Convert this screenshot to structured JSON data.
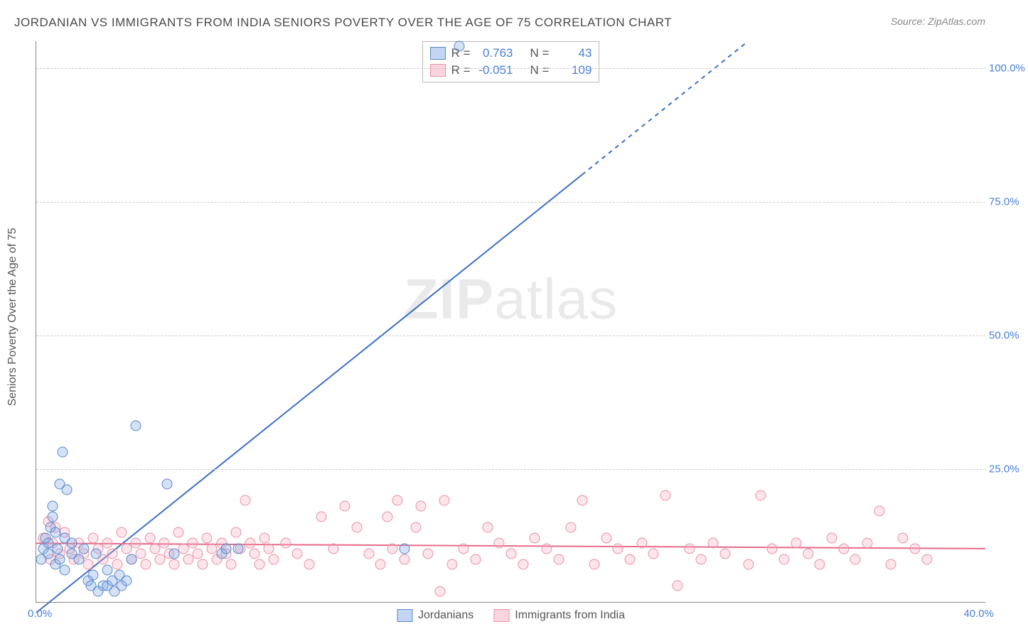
{
  "title": "JORDANIAN VS IMMIGRANTS FROM INDIA SENIORS POVERTY OVER THE AGE OF 75 CORRELATION CHART",
  "source": "Source: ZipAtlas.com",
  "ylabel": "Seniors Poverty Over the Age of 75",
  "watermark_bold": "ZIP",
  "watermark_rest": "atlas",
  "chart": {
    "type": "scatter",
    "xlim": [
      0,
      40
    ],
    "ylim": [
      0,
      105
    ],
    "x_ticks": [
      {
        "v": 0,
        "label": "0.0%"
      },
      {
        "v": 40,
        "label": "40.0%"
      }
    ],
    "y_ticks": [
      {
        "v": 25,
        "label": "25.0%"
      },
      {
        "v": 50,
        "label": "50.0%"
      },
      {
        "v": 75,
        "label": "75.0%"
      },
      {
        "v": 100,
        "label": "100.0%"
      }
    ],
    "grid_color": "#cccccc",
    "axis_color": "#888888",
    "background_color": "#ffffff",
    "marker_size": 15,
    "series": [
      {
        "name": "Jordanians",
        "color_fill": "rgba(136,172,230,0.35)",
        "color_stroke": "#5a88c8",
        "R": 0.763,
        "N": 43,
        "trend": {
          "x1": 0,
          "y1": -2,
          "x2": 23,
          "y2": 80,
          "dash_from_x": 23,
          "dash_to_x": 30,
          "dash_to_y": 105,
          "color": "#3d6fc9",
          "width": 2
        },
        "points": [
          [
            0.2,
            8
          ],
          [
            0.3,
            10
          ],
          [
            0.4,
            12
          ],
          [
            0.5,
            9
          ],
          [
            0.5,
            11
          ],
          [
            0.6,
            14
          ],
          [
            0.7,
            16
          ],
          [
            0.7,
            18
          ],
          [
            0.8,
            7
          ],
          [
            0.8,
            13
          ],
          [
            0.9,
            10
          ],
          [
            1.0,
            8
          ],
          [
            1.0,
            22
          ],
          [
            1.1,
            28
          ],
          [
            1.2,
            12
          ],
          [
            1.2,
            6
          ],
          [
            1.3,
            21
          ],
          [
            1.5,
            9
          ],
          [
            1.5,
            11
          ],
          [
            1.8,
            8
          ],
          [
            2.0,
            10
          ],
          [
            2.2,
            4
          ],
          [
            2.3,
            3
          ],
          [
            2.4,
            5
          ],
          [
            2.5,
            9
          ],
          [
            2.6,
            2
          ],
          [
            2.8,
            3
          ],
          [
            3.0,
            6
          ],
          [
            3.0,
            3
          ],
          [
            3.2,
            4
          ],
          [
            3.3,
            2
          ],
          [
            3.5,
            5
          ],
          [
            3.6,
            3
          ],
          [
            3.8,
            4
          ],
          [
            4.0,
            8
          ],
          [
            4.2,
            33
          ],
          [
            5.5,
            22
          ],
          [
            5.8,
            9
          ],
          [
            7.8,
            9
          ],
          [
            8.0,
            10
          ],
          [
            15.5,
            10
          ],
          [
            17.8,
            104
          ],
          [
            8.5,
            10
          ]
        ]
      },
      {
        "name": "Immigrants from India",
        "color_fill": "rgba(245,170,190,0.30)",
        "color_stroke": "#e890a5",
        "R": -0.051,
        "N": 109,
        "trend": {
          "x1": 0,
          "y1": 11,
          "x2": 40,
          "y2": 10,
          "color": "#e86a8a",
          "width": 2
        },
        "points": [
          [
            0.3,
            12
          ],
          [
            0.5,
            15
          ],
          [
            0.6,
            8
          ],
          [
            0.7,
            11
          ],
          [
            0.8,
            14
          ],
          [
            1.0,
            9
          ],
          [
            1.2,
            13
          ],
          [
            1.4,
            10
          ],
          [
            1.6,
            8
          ],
          [
            1.8,
            11
          ],
          [
            2.0,
            9
          ],
          [
            2.2,
            7
          ],
          [
            2.4,
            12
          ],
          [
            2.6,
            10
          ],
          [
            2.8,
            8
          ],
          [
            3.0,
            11
          ],
          [
            3.2,
            9
          ],
          [
            3.4,
            7
          ],
          [
            3.6,
            13
          ],
          [
            3.8,
            10
          ],
          [
            4.0,
            8
          ],
          [
            4.2,
            11
          ],
          [
            4.4,
            9
          ],
          [
            4.6,
            7
          ],
          [
            4.8,
            12
          ],
          [
            5.0,
            10
          ],
          [
            5.2,
            8
          ],
          [
            5.4,
            11
          ],
          [
            5.6,
            9
          ],
          [
            5.8,
            7
          ],
          [
            6.0,
            13
          ],
          [
            6.2,
            10
          ],
          [
            6.4,
            8
          ],
          [
            6.6,
            11
          ],
          [
            6.8,
            9
          ],
          [
            7.0,
            7
          ],
          [
            7.2,
            12
          ],
          [
            7.4,
            10
          ],
          [
            7.6,
            8
          ],
          [
            7.8,
            11
          ],
          [
            8.0,
            9
          ],
          [
            8.2,
            7
          ],
          [
            8.4,
            13
          ],
          [
            8.6,
            10
          ],
          [
            8.8,
            19
          ],
          [
            9.0,
            11
          ],
          [
            9.2,
            9
          ],
          [
            9.4,
            7
          ],
          [
            9.6,
            12
          ],
          [
            9.8,
            10
          ],
          [
            10.0,
            8
          ],
          [
            10.5,
            11
          ],
          [
            11.0,
            9
          ],
          [
            11.5,
            7
          ],
          [
            12.0,
            16
          ],
          [
            12.5,
            10
          ],
          [
            13.0,
            18
          ],
          [
            13.5,
            14
          ],
          [
            14.0,
            9
          ],
          [
            14.5,
            7
          ],
          [
            14.8,
            16
          ],
          [
            15.0,
            10
          ],
          [
            15.2,
            19
          ],
          [
            15.5,
            8
          ],
          [
            16.0,
            14
          ],
          [
            16.2,
            18
          ],
          [
            16.5,
            9
          ],
          [
            17.0,
            2
          ],
          [
            17.2,
            19
          ],
          [
            17.5,
            7
          ],
          [
            18.0,
            10
          ],
          [
            18.5,
            8
          ],
          [
            19.0,
            14
          ],
          [
            19.5,
            11
          ],
          [
            20.0,
            9
          ],
          [
            20.5,
            7
          ],
          [
            21.0,
            12
          ],
          [
            21.5,
            10
          ],
          [
            22.0,
            8
          ],
          [
            22.5,
            14
          ],
          [
            23.0,
            19
          ],
          [
            23.5,
            7
          ],
          [
            24.0,
            12
          ],
          [
            24.5,
            10
          ],
          [
            25.0,
            8
          ],
          [
            25.5,
            11
          ],
          [
            26.0,
            9
          ],
          [
            26.5,
            20
          ],
          [
            27.0,
            3
          ],
          [
            27.5,
            10
          ],
          [
            28.0,
            8
          ],
          [
            28.5,
            11
          ],
          [
            29.0,
            9
          ],
          [
            30.0,
            7
          ],
          [
            30.5,
            20
          ],
          [
            31.0,
            10
          ],
          [
            31.5,
            8
          ],
          [
            32.0,
            11
          ],
          [
            32.5,
            9
          ],
          [
            33.0,
            7
          ],
          [
            33.5,
            12
          ],
          [
            34.0,
            10
          ],
          [
            34.5,
            8
          ],
          [
            35.0,
            11
          ],
          [
            35.5,
            17
          ],
          [
            36.0,
            7
          ],
          [
            36.5,
            12
          ],
          [
            37.0,
            10
          ],
          [
            37.5,
            8
          ]
        ]
      }
    ]
  },
  "legend": {
    "R_label": "R =",
    "N_label": "N ="
  }
}
